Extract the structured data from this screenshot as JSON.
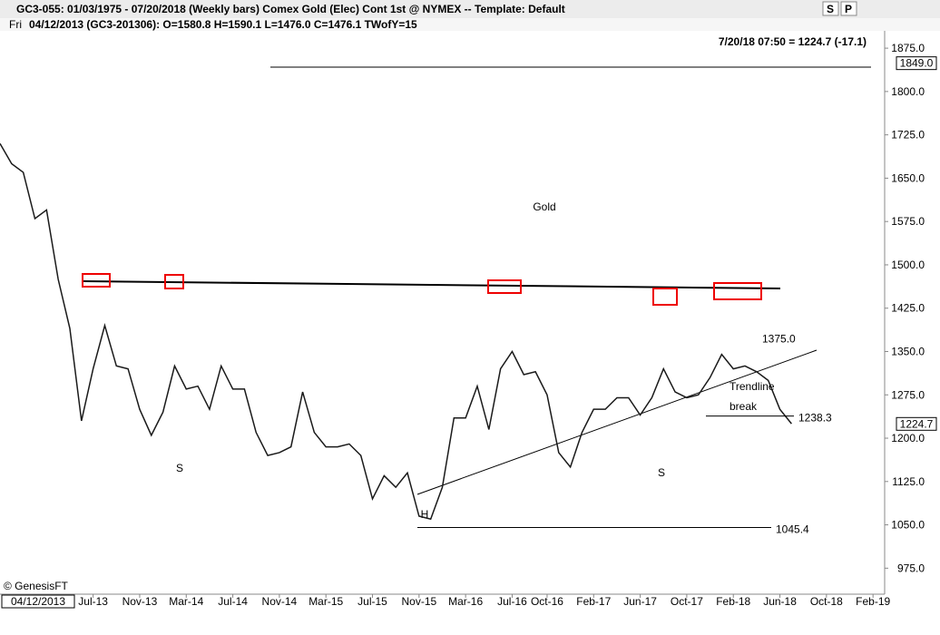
{
  "header": {
    "title": "GC3-055:  01/03/1975 - 07/20/2018  (Weekly bars)   Comex Gold (Elec) Cont  1st @ NYMEX  --  Template: Default",
    "day": "Fri",
    "info": "04/12/2013 (GC3-201306):  O=1580.8  H=1590.1  L=1476.0  C=1476.1  TWofY=15",
    "buttons": [
      "S",
      "P"
    ]
  },
  "chart_data": {
    "type": "line",
    "title": "Gold",
    "readout": "7/20/18 07:50 = 1224.7 (-17.1)",
    "color": "#1a1a1a",
    "x": [
      "2012-11",
      "2012-12",
      "2013-01",
      "2013-02",
      "2013-03",
      "2013-04",
      "2013-05",
      "2013-06",
      "2013-07",
      "2013-08",
      "2013-09",
      "2013-10",
      "2013-11",
      "2013-12",
      "2014-01",
      "2014-02",
      "2014-03",
      "2014-04",
      "2014-05",
      "2014-06",
      "2014-07",
      "2014-08",
      "2014-09",
      "2014-10",
      "2014-11",
      "2014-12",
      "2015-01",
      "2015-02",
      "2015-03",
      "2015-04",
      "2015-05",
      "2015-06",
      "2015-07",
      "2015-08",
      "2015-09",
      "2015-10",
      "2015-11",
      "2015-12",
      "2016-01",
      "2016-02",
      "2016-03",
      "2016-04",
      "2016-05",
      "2016-06",
      "2016-07",
      "2016-08",
      "2016-09",
      "2016-10",
      "2016-11",
      "2016-12",
      "2017-01",
      "2017-02",
      "2017-03",
      "2017-04",
      "2017-05",
      "2017-06",
      "2017-07",
      "2017-08",
      "2017-09",
      "2017-10",
      "2017-11",
      "2017-12",
      "2018-01",
      "2018-02",
      "2018-03",
      "2018-04",
      "2018-05",
      "2018-06",
      "2018-07"
    ],
    "values": [
      1710,
      1675,
      1660,
      1580,
      1595,
      1475,
      1390,
      1230,
      1320,
      1395,
      1325,
      1320,
      1250,
      1205,
      1245,
      1325,
      1285,
      1290,
      1250,
      1325,
      1285,
      1285,
      1210,
      1170,
      1175,
      1185,
      1280,
      1210,
      1185,
      1185,
      1190,
      1170,
      1095,
      1135,
      1115,
      1140,
      1065,
      1060,
      1115,
      1235,
      1235,
      1290,
      1215,
      1320,
      1350,
      1310,
      1315,
      1275,
      1175,
      1150,
      1210,
      1250,
      1250,
      1270,
      1270,
      1240,
      1270,
      1320,
      1280,
      1270,
      1275,
      1305,
      1345,
      1320,
      1325,
      1315,
      1300,
      1250,
      1225
    ],
    "xlim": [
      "2012-11",
      "2019-03"
    ],
    "xticks": [
      {
        "value": "2013-07",
        "label": "Jul-13"
      },
      {
        "value": "2013-11",
        "label": "Nov-13"
      },
      {
        "value": "2014-03",
        "label": "Mar-14"
      },
      {
        "value": "2014-07",
        "label": "Jul-14"
      },
      {
        "value": "2014-11",
        "label": "Nov-14"
      },
      {
        "value": "2015-03",
        "label": "Mar-15"
      },
      {
        "value": "2015-07",
        "label": "Jul-15"
      },
      {
        "value": "2015-11",
        "label": "Nov-15"
      },
      {
        "value": "2016-03",
        "label": "Mar-16"
      },
      {
        "value": "2016-07",
        "label": "Jul-16"
      },
      {
        "value": "2016-10",
        "label": "Oct-16"
      },
      {
        "value": "2017-02",
        "label": "Feb-17"
      },
      {
        "value": "2017-06",
        "label": "Jun-17"
      },
      {
        "value": "2017-10",
        "label": "Oct-17"
      },
      {
        "value": "2018-02",
        "label": "Feb-18"
      },
      {
        "value": "2018-06",
        "label": "Jun-18"
      },
      {
        "value": "2018-10",
        "label": "Oct-18"
      },
      {
        "value": "2019-02",
        "label": "Feb-19"
      }
    ],
    "ylim": [
      930,
      1905
    ],
    "yticks": [
      {
        "value": 975,
        "label": "975.0"
      },
      {
        "value": 1050,
        "label": "1050.0"
      },
      {
        "value": 1125,
        "label": "1125.0"
      },
      {
        "value": 1200,
        "label": "1200.0"
      },
      {
        "value": 1275,
        "label": "1275.0"
      },
      {
        "value": 1350,
        "label": "1350.0"
      },
      {
        "value": 1425,
        "label": "1425.0"
      },
      {
        "value": 1500,
        "label": "1500.0"
      },
      {
        "value": 1575,
        "label": "1575.0"
      },
      {
        "value": 1650,
        "label": "1650.0"
      },
      {
        "value": 1725,
        "label": "1725.0"
      },
      {
        "value": 1800,
        "label": "1800.0"
      },
      {
        "value": 1875,
        "label": "1875.0"
      }
    ],
    "levels": [
      {
        "value": 1375,
        "label": "1375.0"
      },
      {
        "value": 1238.3,
        "label": "1238.3"
      },
      {
        "value": 1045.4,
        "label": "1045.4"
      }
    ],
    "price_tags": [
      {
        "value": 1849,
        "label": "1849.0"
      },
      {
        "value": 1224.7,
        "label": "1224.7"
      }
    ],
    "annotations": [
      "S",
      "H",
      "S",
      "Trendline\nbreak"
    ],
    "cursor_date": "04/12/2013",
    "credit": "© GenesisFT"
  }
}
